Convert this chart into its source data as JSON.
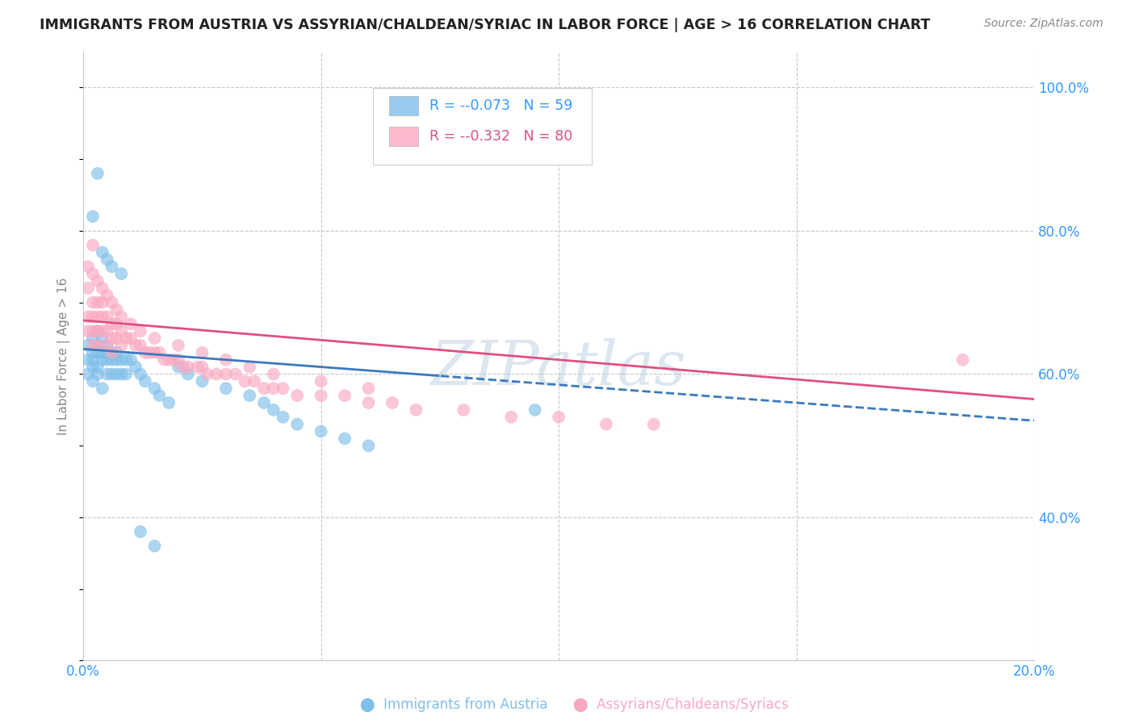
{
  "title": "IMMIGRANTS FROM AUSTRIA VS ASSYRIAN/CHALDEAN/SYRIAC IN LABOR FORCE | AGE > 16 CORRELATION CHART",
  "source_text": "Source: ZipAtlas.com",
  "ylabel": "In Labor Force | Age > 16",
  "xlim": [
    0.0,
    0.2
  ],
  "ylim": [
    0.2,
    1.05
  ],
  "legend_R1": "-0.073",
  "legend_N1": "59",
  "legend_R2": "-0.332",
  "legend_N2": "80",
  "series1_color": "#7fbfea",
  "series2_color": "#f9a8c0",
  "trend1_color": "#3a7abf",
  "trend2_color": "#e05080",
  "watermark": "ZIPatlas",
  "background_color": "#ffffff",
  "grid_color": "#c8c8c8",
  "blue_x": [
    0.001,
    0.001,
    0.001,
    0.002,
    0.002,
    0.002,
    0.002,
    0.002,
    0.003,
    0.003,
    0.003,
    0.003,
    0.003,
    0.004,
    0.004,
    0.004,
    0.004,
    0.005,
    0.005,
    0.005,
    0.005,
    0.006,
    0.006,
    0.006,
    0.007,
    0.007,
    0.007,
    0.008,
    0.008,
    0.009,
    0.009,
    0.01,
    0.011,
    0.012,
    0.013,
    0.015,
    0.016,
    0.018,
    0.02,
    0.022,
    0.025,
    0.03,
    0.035,
    0.038,
    0.04,
    0.042,
    0.045,
    0.05,
    0.055,
    0.06,
    0.002,
    0.003,
    0.004,
    0.005,
    0.006,
    0.008,
    0.012,
    0.015,
    0.095
  ],
  "blue_y": [
    0.64,
    0.62,
    0.6,
    0.65,
    0.63,
    0.62,
    0.61,
    0.59,
    0.66,
    0.64,
    0.63,
    0.61,
    0.6,
    0.65,
    0.63,
    0.62,
    0.58,
    0.64,
    0.63,
    0.62,
    0.6,
    0.63,
    0.62,
    0.6,
    0.63,
    0.62,
    0.6,
    0.62,
    0.6,
    0.62,
    0.6,
    0.62,
    0.61,
    0.6,
    0.59,
    0.58,
    0.57,
    0.56,
    0.61,
    0.6,
    0.59,
    0.58,
    0.57,
    0.56,
    0.55,
    0.54,
    0.53,
    0.52,
    0.51,
    0.5,
    0.82,
    0.88,
    0.77,
    0.76,
    0.75,
    0.74,
    0.38,
    0.36,
    0.55
  ],
  "pink_x": [
    0.001,
    0.001,
    0.001,
    0.002,
    0.002,
    0.002,
    0.002,
    0.003,
    0.003,
    0.003,
    0.003,
    0.004,
    0.004,
    0.004,
    0.005,
    0.005,
    0.005,
    0.006,
    0.006,
    0.006,
    0.007,
    0.007,
    0.008,
    0.008,
    0.009,
    0.01,
    0.011,
    0.012,
    0.013,
    0.014,
    0.015,
    0.016,
    0.017,
    0.018,
    0.019,
    0.02,
    0.021,
    0.022,
    0.024,
    0.025,
    0.026,
    0.028,
    0.03,
    0.032,
    0.034,
    0.036,
    0.038,
    0.04,
    0.042,
    0.045,
    0.05,
    0.055,
    0.06,
    0.065,
    0.07,
    0.08,
    0.09,
    0.1,
    0.11,
    0.12,
    0.001,
    0.002,
    0.003,
    0.004,
    0.005,
    0.006,
    0.007,
    0.008,
    0.01,
    0.012,
    0.015,
    0.02,
    0.025,
    0.03,
    0.035,
    0.04,
    0.05,
    0.06,
    0.185,
    0.002
  ],
  "pink_y": [
    0.68,
    0.66,
    0.72,
    0.7,
    0.68,
    0.66,
    0.64,
    0.7,
    0.68,
    0.66,
    0.64,
    0.7,
    0.68,
    0.66,
    0.68,
    0.66,
    0.64,
    0.67,
    0.65,
    0.63,
    0.67,
    0.65,
    0.66,
    0.64,
    0.65,
    0.65,
    0.64,
    0.64,
    0.63,
    0.63,
    0.63,
    0.63,
    0.62,
    0.62,
    0.62,
    0.62,
    0.61,
    0.61,
    0.61,
    0.61,
    0.6,
    0.6,
    0.6,
    0.6,
    0.59,
    0.59,
    0.58,
    0.58,
    0.58,
    0.57,
    0.57,
    0.57,
    0.56,
    0.56,
    0.55,
    0.55,
    0.54,
    0.54,
    0.53,
    0.53,
    0.75,
    0.74,
    0.73,
    0.72,
    0.71,
    0.7,
    0.69,
    0.68,
    0.67,
    0.66,
    0.65,
    0.64,
    0.63,
    0.62,
    0.61,
    0.6,
    0.59,
    0.58,
    0.62,
    0.78
  ]
}
